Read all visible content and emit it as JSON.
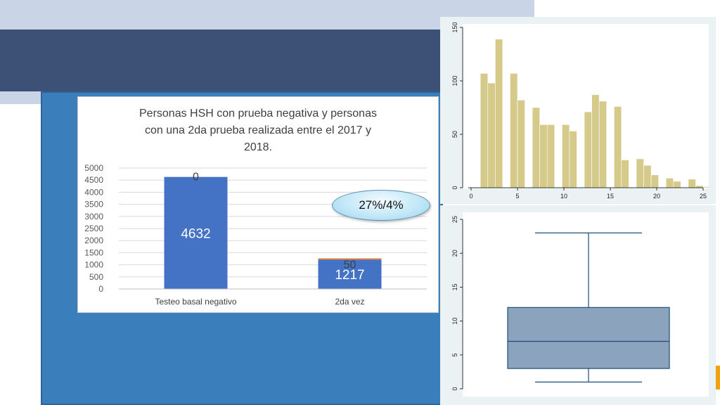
{
  "colors": {
    "slide_top_band": "#c9d5e7",
    "slide_dark_band": "#3d5176",
    "slide_blue_block": "#3a7fbc",
    "accent_orange": "#f2a20d",
    "bar_primary": "#4472c4",
    "bar_secondary": "#ed7d31",
    "hist_fill": "#d5ca8a",
    "box_fill": "#8ba3bd",
    "stata_line": "#1f4e79"
  },
  "callout": {
    "text": "27%/4%"
  },
  "chart_data": [
    {
      "type": "bar",
      "stacked": true,
      "title": "Personas HSH con prueba  negativa y personas con una 2da prueba realizada entre el 2017 y 2018.",
      "title_lines": [
        "Personas HSH con prueba  negativa y personas",
        "con una 2da prueba realizada entre el 2017 y",
        "2018."
      ],
      "categories": [
        "Testeo basal negativo",
        "2da vez"
      ],
      "series": [
        {
          "values": [
            4632,
            1217
          ],
          "labels": [
            "4632",
            "1217"
          ],
          "color": "#4472c4"
        },
        {
          "values": [
            0,
            50
          ],
          "labels": [
            "0",
            "50"
          ],
          "color": "#ed7d31"
        }
      ],
      "ylim": [
        0,
        5000
      ],
      "yticks": [
        0,
        500,
        1000,
        1500,
        2000,
        2500,
        3000,
        3500,
        4000,
        4500,
        5000
      ],
      "grid": true
    },
    {
      "type": "bar",
      "subtype": "histogram",
      "bin_width": 0.8,
      "x_start": 1,
      "values": [
        107,
        98,
        139,
        0,
        107,
        82,
        0,
        75,
        59,
        59,
        0,
        59,
        53,
        0,
        71,
        87,
        81,
        0,
        76,
        26,
        0,
        27,
        21,
        12,
        0,
        9,
        6,
        0,
        8,
        2,
        1
      ],
      "xlim": [
        0,
        25
      ],
      "xticks": [
        0,
        5,
        10,
        15,
        20,
        25
      ],
      "ylim": [
        0,
        150
      ],
      "yticks": [
        0,
        50,
        100,
        150
      ],
      "grid": false
    },
    {
      "type": "box",
      "min": 1,
      "q1": 3,
      "median": 7,
      "q3": 12,
      "max": 23,
      "ylim": [
        0,
        25
      ],
      "yticks": [
        0,
        5,
        10,
        15,
        20,
        25
      ],
      "grid": false
    }
  ]
}
